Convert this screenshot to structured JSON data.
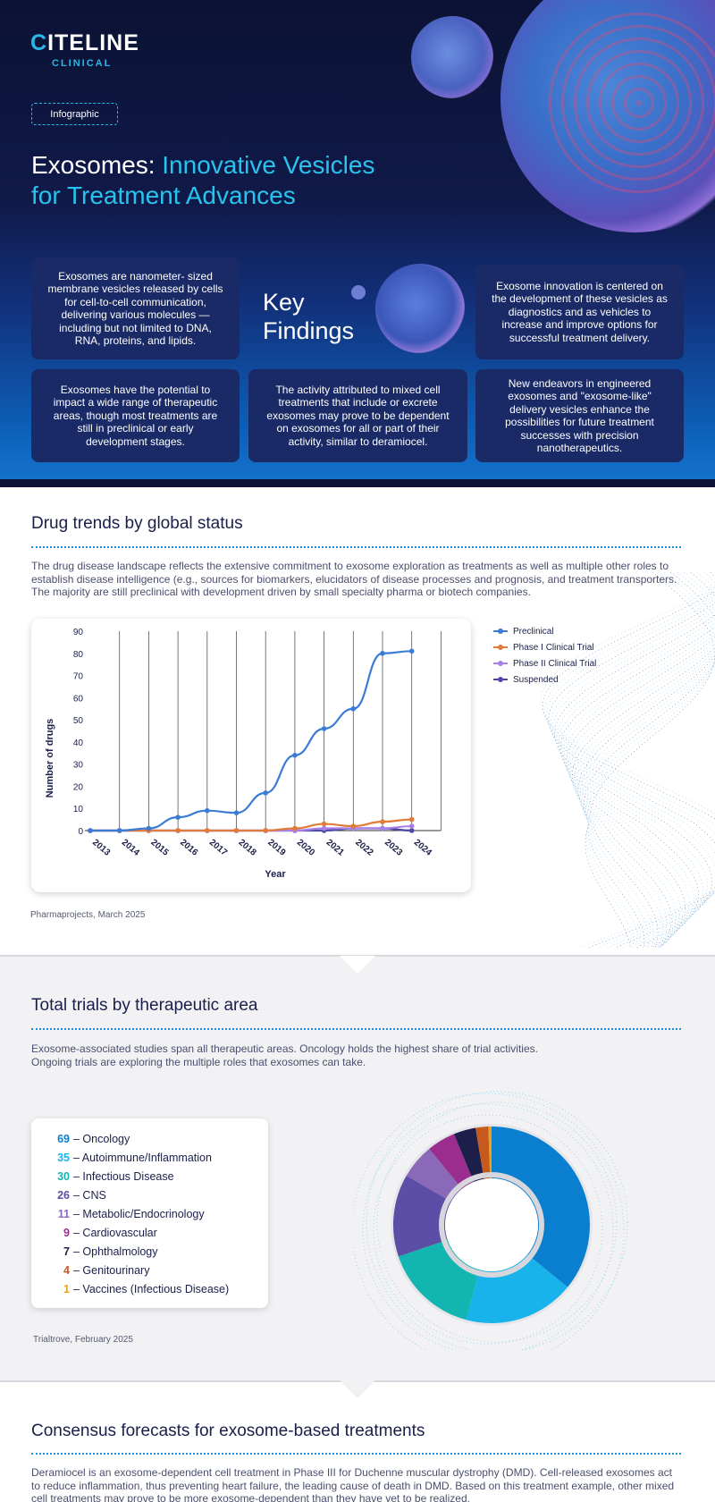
{
  "brand": {
    "name_first": "C",
    "name_rest": "ITELINE",
    "sub": "CLINICAL"
  },
  "tag": "Infographic",
  "hero": {
    "title_plain": "Exosomes: ",
    "title_line1_hl": "Innovative Vesicles",
    "title_line2_hl": "for Treatment Advances"
  },
  "key_findings": {
    "title_line1": "Key",
    "title_line2": "Findings",
    "cards": [
      "Exosomes are nanometer- sized membrane vesicles released by cells for cell-to-cell communication, delivering various molecules — including but not limited to DNA, RNA, proteins, and lipids.",
      "Exosome innovation is centered on the development of these vesicles as diagnostics and as vehicles to increase and improve options for successful treatment delivery.",
      "Exosomes have the potential to impact a wide range of therapeutic areas, though most treatments are still in preclinical or early development stages.",
      "The activity attributed to mixed cell treatments that include or excrete exosomes may prove to be dependent on exosomes for all or part of their activity, similar to deramiocel.",
      "New endeavors in engineered exosomes and \"exosome-like\" delivery vesicles enhance the possibilities for future treatment successes with precision nanotherapeutics."
    ]
  },
  "section1": {
    "title": "Drug trends by global status",
    "text": "The drug disease landscape reflects the extensive commitment to exosome exploration as treatments as well as multiple other roles to establish disease intelligence  (e.g., sources for biomarkers, elucidators of disease processes and prognosis, and treatment transporters. The majority are still preclinical with development driven by small specialty pharma or biotech companies.",
    "source": "Pharmaprojects, March 2025"
  },
  "section2": {
    "title": "Total trials by therapeutic area",
    "text_line1": "Exosome-associated studies span all therapeutic areas. Oncology holds the highest share of trial activities.",
    "text_line2": "Ongoing trials are exploring the multiple roles that exosomes can take.",
    "source": "Trialtrove, February 2025"
  },
  "section3": {
    "title": "Consensus forecasts for exosome-based treatments",
    "text": "Deramiocel is an exosome-dependent cell treatment in Phase III for Duchenne muscular dystrophy (DMD). Cell-released exosomes act to reduce inflammation, thus preventing heart failure, the leading cause of death in DMD. Based on this treatment example, other mixed cell treatments may prove to be more exosome-dependent than they have yet to be realized."
  },
  "colors": {
    "preclinical": "#3a7bd5",
    "phase1": "#e07b39",
    "phase2": "#a77fe8",
    "suspended": "#4b4aa8"
  },
  "chart_data": [
    {
      "type": "line",
      "title": "",
      "xlabel": "Year",
      "ylabel": "Number of drugs",
      "ylim": [
        0,
        90
      ],
      "yticks": [
        0,
        10,
        20,
        30,
        40,
        50,
        60,
        70,
        80,
        90
      ],
      "x": [
        "2013",
        "2014",
        "2015",
        "2016",
        "2017",
        "2018",
        "2019",
        "2020",
        "2021",
        "2022",
        "2023",
        "2024"
      ],
      "legend_position": "right",
      "series": [
        {
          "name": "Preclinical",
          "color": "#3a7bd5",
          "values": [
            0,
            0,
            1,
            6,
            9,
            8,
            17,
            34,
            46,
            55,
            80,
            81
          ]
        },
        {
          "name": "Phase I Clinical Trial",
          "color": "#e07b39",
          "values": [
            0,
            0,
            0,
            0,
            0,
            0,
            0,
            1,
            3,
            2,
            4,
            5
          ]
        },
        {
          "name": "Phase II Clinical Trial",
          "color": "#a77fe8",
          "values": [
            0,
            0,
            0,
            0,
            0,
            0,
            0,
            0,
            1,
            1,
            1,
            2
          ]
        },
        {
          "name": "Suspended",
          "color": "#4b4aa8",
          "values": [
            0,
            0,
            0,
            0,
            0,
            0,
            0,
            0,
            0,
            1,
            1,
            0
          ]
        }
      ]
    },
    {
      "type": "pie",
      "title": "Total trials by therapeutic area",
      "slices": [
        {
          "label": "Oncology",
          "value": 69,
          "color": "#0a7fcf"
        },
        {
          "label": "Autoimmune/Inflammation",
          "value": 35,
          "color": "#18b3ea"
        },
        {
          "label": "Infectious Disease",
          "value": 30,
          "color": "#13b5b0"
        },
        {
          "label": "CNS",
          "value": 26,
          "color": "#5c4ea6"
        },
        {
          "label": "Metabolic/Endocrinology",
          "value": 11,
          "color": "#8a6ab8"
        },
        {
          "label": "Cardiovascular",
          "value": 9,
          "color": "#9b2d8e"
        },
        {
          "label": "Ophthalmology",
          "value": 7,
          "color": "#1c1f4a"
        },
        {
          "label": "Genitourinary",
          "value": 4,
          "color": "#c65a1e"
        },
        {
          "label": "Vaccines (Infectious Disease)",
          "value": 1,
          "color": "#e8a21e"
        }
      ]
    }
  ]
}
